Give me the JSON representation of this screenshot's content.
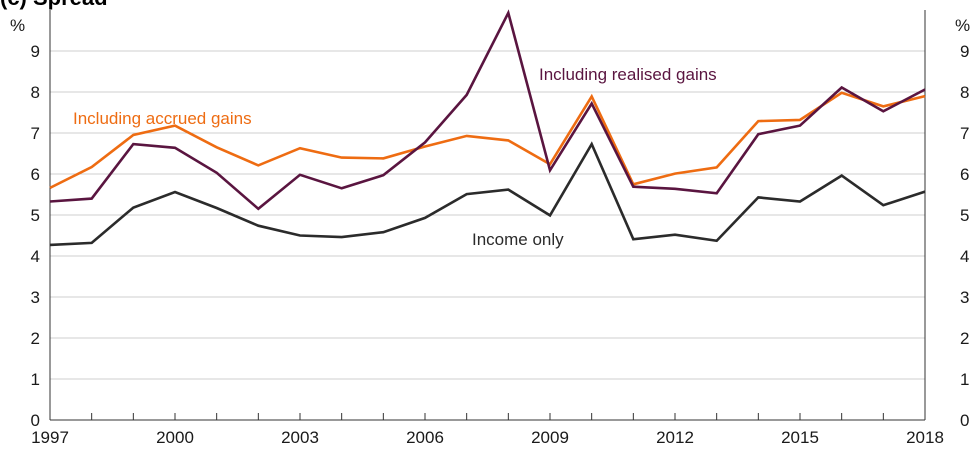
{
  "panel_title": "(c) Spread",
  "chart_data": {
    "type": "line",
    "title": "",
    "y_unit_left": "%",
    "y_unit_right": "%",
    "ylim": [
      0,
      10
    ],
    "yticks": [
      "0",
      "1",
      "2",
      "3",
      "4",
      "5",
      "6",
      "7",
      "8",
      "9"
    ],
    "x": [
      1997,
      1998,
      1999,
      2000,
      2001,
      2002,
      2003,
      2004,
      2005,
      2006,
      2007,
      2008,
      2009,
      2010,
      2011,
      2012,
      2013,
      2014,
      2015,
      2016,
      2017,
      2018
    ],
    "xticks": [
      "1997",
      "2000",
      "2003",
      "2006",
      "2009",
      "2012",
      "2015",
      "2018"
    ],
    "series": [
      {
        "name": "Income only",
        "color": "#2b2b2b",
        "values": [
          4.27,
          4.32,
          5.18,
          5.56,
          5.17,
          4.74,
          4.5,
          4.46,
          4.58,
          4.93,
          5.51,
          5.62,
          4.99,
          6.73,
          4.41,
          4.52,
          4.37,
          5.43,
          5.33,
          5.96,
          5.24,
          5.57
        ]
      },
      {
        "name": "Including accrued gains",
        "color": "#ee6c12",
        "values": [
          5.66,
          6.17,
          6.95,
          7.18,
          6.65,
          6.21,
          6.63,
          6.4,
          6.38,
          6.67,
          6.93,
          6.82,
          6.24,
          7.89,
          5.75,
          6.01,
          6.16,
          7.29,
          7.32,
          7.98,
          7.65,
          7.9
        ]
      },
      {
        "name": "Including realised gains",
        "color": "#5a1540",
        "values": [
          5.33,
          5.4,
          6.73,
          6.64,
          6.03,
          5.15,
          5.98,
          5.65,
          5.97,
          6.77,
          7.93,
          9.93,
          6.09,
          7.72,
          5.69,
          5.64,
          5.53,
          6.97,
          7.18,
          8.11,
          7.53,
          8.06
        ]
      }
    ]
  }
}
